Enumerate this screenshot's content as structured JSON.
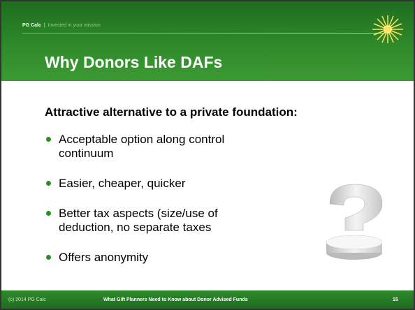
{
  "header": {
    "brand": "PG Calc",
    "separator": "|",
    "tagline": "Invested in your mission"
  },
  "title": "Why Donors Like DAFs",
  "body": {
    "heading": "Attractive alternative to a private foundation:",
    "bullets": [
      "Acceptable option along control continuum",
      "Easier, cheaper, quicker",
      "Better tax aspects (size/use of deduction, no separate taxes",
      "Offers anonymity"
    ]
  },
  "footer": {
    "copyright": "(c) 2014 PG Calc",
    "subtitle": "What Gift Planners Need to Know about Donor Advised Funds",
    "page": "15"
  }
}
